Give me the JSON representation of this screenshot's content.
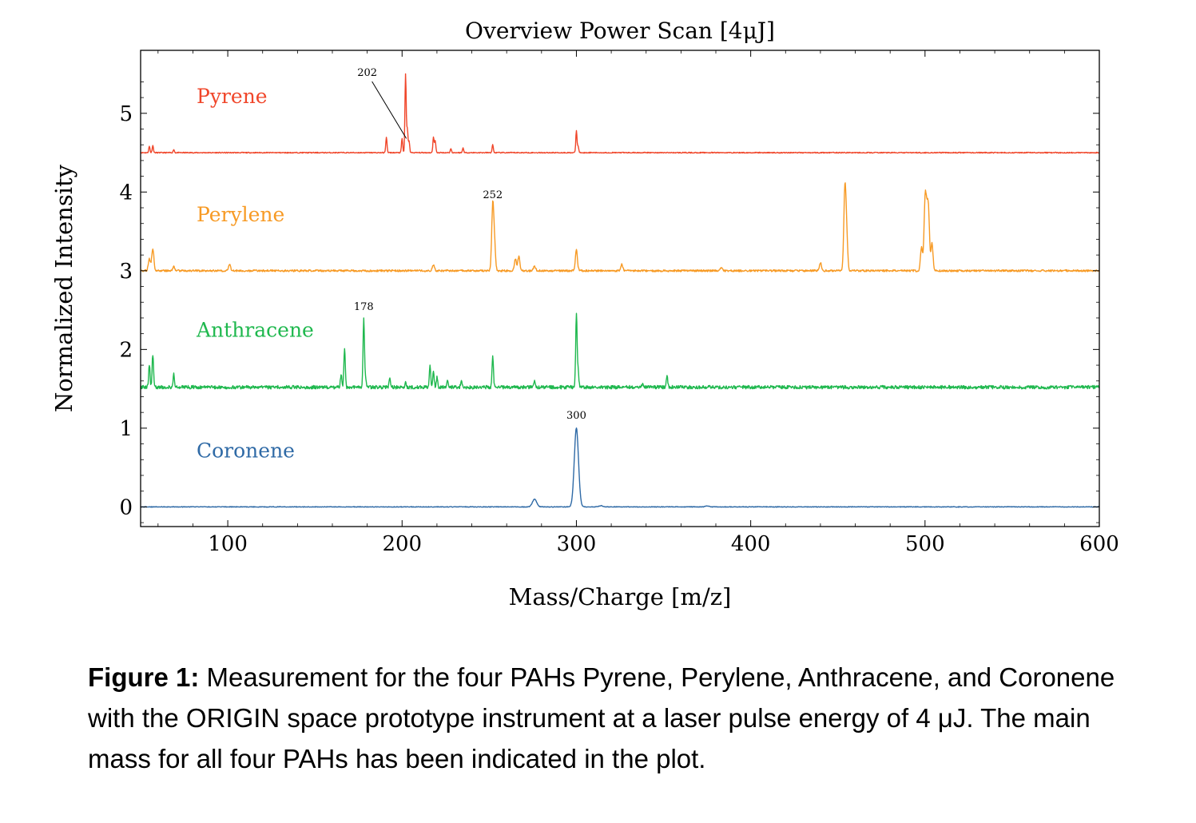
{
  "chart_data": {
    "type": "line",
    "title": "Overview Power Scan [4μJ]",
    "xlabel": "Mass/Charge [m/z]",
    "ylabel": "Normalized Intensity",
    "xlim": [
      50,
      600
    ],
    "ylim": [
      -0.25,
      5.8
    ],
    "xticks": [
      100,
      200,
      300,
      400,
      500,
      600
    ],
    "yticks": [
      0,
      1,
      2,
      3,
      4,
      5
    ],
    "grid": false,
    "series": [
      {
        "name": "Pyrene",
        "color": "#f0462a",
        "baseline": 4.5,
        "peaks": [
          [
            55,
            0.08
          ],
          [
            57,
            0.09
          ],
          [
            69,
            0.04
          ],
          [
            191,
            0.2
          ],
          [
            200,
            0.18
          ],
          [
            202,
            1.0
          ],
          [
            203,
            0.3
          ],
          [
            204,
            0.15
          ],
          [
            218,
            0.2
          ],
          [
            219,
            0.15
          ],
          [
            228,
            0.05
          ],
          [
            235,
            0.06
          ],
          [
            252,
            0.1
          ],
          [
            300,
            0.28
          ],
          [
            301,
            0.08
          ]
        ],
        "annotation": {
          "text": "202",
          "x": 202
        }
      },
      {
        "name": "Perylene",
        "color": "#f79a24",
        "baseline": 3.0,
        "peaks": [
          [
            55,
            0.15
          ],
          [
            57,
            0.28
          ],
          [
            69,
            0.05
          ],
          [
            101,
            0.08
          ],
          [
            218,
            0.08
          ],
          [
            252,
            0.8
          ],
          [
            253,
            0.3
          ],
          [
            265,
            0.15
          ],
          [
            267,
            0.18
          ],
          [
            276,
            0.06
          ],
          [
            300,
            0.26
          ],
          [
            326,
            0.08
          ],
          [
            383,
            0.04
          ],
          [
            440,
            0.1
          ],
          [
            454,
            1.0
          ],
          [
            455,
            0.45
          ],
          [
            498,
            0.3
          ],
          [
            500,
            0.82
          ],
          [
            501,
            0.55
          ],
          [
            502,
            0.7
          ],
          [
            504,
            0.35
          ]
        ],
        "annotation": {
          "text": "252",
          "x": 252
        }
      },
      {
        "name": "Anthracene",
        "color": "#1fb84e",
        "baseline": 1.52,
        "peaks": [
          [
            55,
            0.28
          ],
          [
            57,
            0.42
          ],
          [
            69,
            0.16
          ],
          [
            165,
            0.16
          ],
          [
            167,
            0.5
          ],
          [
            178,
            0.86
          ],
          [
            179,
            0.12
          ],
          [
            193,
            0.12
          ],
          [
            202,
            0.06
          ],
          [
            216,
            0.28
          ],
          [
            218,
            0.22
          ],
          [
            220,
            0.12
          ],
          [
            226,
            0.1
          ],
          [
            234,
            0.08
          ],
          [
            252,
            0.4
          ],
          [
            276,
            0.08
          ],
          [
            300,
            0.94
          ],
          [
            301,
            0.2
          ],
          [
            338,
            0.06
          ],
          [
            352,
            0.16
          ]
        ],
        "annotation": {
          "text": "178",
          "x": 178
        }
      },
      {
        "name": "Coronene",
        "color": "#2f6aa6",
        "baseline": 0.0,
        "peaks": [
          [
            276,
            0.1
          ],
          [
            300,
            1.0
          ],
          [
            314,
            0.015
          ],
          [
            375,
            0.01
          ]
        ],
        "annotation": {
          "text": "300",
          "x": 300
        }
      }
    ]
  },
  "caption": {
    "lead": "Figure 1:",
    "text": " Measurement for the four PAHs Pyrene, Perylene, Anthracene, and Coronene with the ORIGIN space prototype instrument at a laser pulse energy of 4 μJ. The main mass for all four PAHs has been indicated in the plot."
  }
}
